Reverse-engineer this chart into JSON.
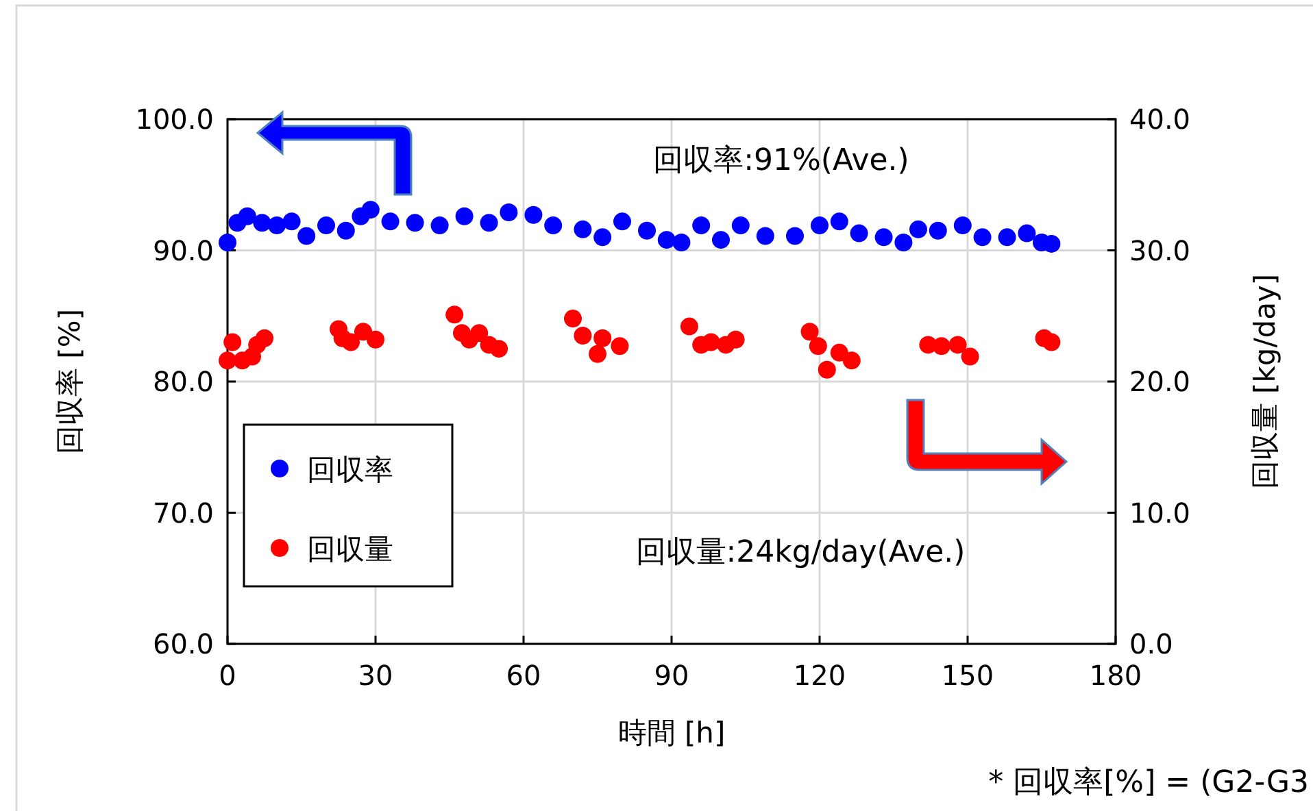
{
  "chart_data": {
    "type": "scatter",
    "xlabel": "時間 [h]",
    "ylabel": "回収率 [%]",
    "y2label": "回収量 [kg/day]",
    "xlim": [
      0,
      180
    ],
    "xticks": [
      0,
      30,
      60,
      90,
      120,
      150,
      180
    ],
    "ylim": [
      60,
      100
    ],
    "yticks": [
      {
        "value": 60,
        "label": "60.0"
      },
      {
        "value": 70,
        "label": "70.0"
      },
      {
        "value": 80,
        "label": "80.0"
      },
      {
        "value": 90,
        "label": "90.0"
      },
      {
        "value": 100,
        "label": "100.0"
      }
    ],
    "y2lim": [
      0,
      40
    ],
    "y2ticks": [
      {
        "value": 0,
        "label": "0.0"
      },
      {
        "value": 10,
        "label": "10.0"
      },
      {
        "value": 20,
        "label": "20.0"
      },
      {
        "value": 30,
        "label": "30.0"
      },
      {
        "value": 40,
        "label": "40.0"
      }
    ],
    "grid": true,
    "legend": "bottom left",
    "marker": "circle",
    "series": [
      {
        "name": "回収率",
        "color": "#0000ff",
        "x": [
          0,
          2,
          4,
          7,
          10,
          13,
          16,
          20,
          24,
          27,
          29,
          33,
          38,
          43,
          48,
          53,
          57,
          62,
          66,
          72,
          76,
          80,
          85,
          89,
          92,
          96,
          100,
          104,
          109,
          115,
          120,
          124,
          128,
          133,
          137,
          140,
          144,
          149,
          153,
          158,
          162,
          165,
          167
        ],
        "values": [
          90.6,
          92.1,
          92.6,
          92.1,
          91.9,
          92.2,
          91.1,
          91.9,
          91.5,
          92.6,
          93.1,
          92.2,
          92.1,
          91.9,
          92.6,
          92.1,
          92.9,
          92.7,
          91.9,
          91.6,
          91.0,
          92.2,
          91.5,
          90.8,
          90.6,
          91.9,
          90.8,
          91.9,
          91.1,
          91.1,
          91.9,
          92.2,
          91.3,
          91.0,
          90.6,
          91.6,
          91.5,
          91.9,
          91.0,
          91.0,
          91.3,
          90.6,
          90.5
        ]
      },
      {
        "name": "回収量",
        "color": "#ff0000",
        "axis": "y2",
        "x": [
          0,
          1,
          3,
          5,
          6,
          7.5,
          22.5,
          23.3,
          25,
          27.5,
          30,
          46,
          47.5,
          49,
          51,
          53,
          55,
          70,
          72,
          75,
          76,
          79.5,
          93.6,
          96,
          98,
          101,
          103,
          118,
          119.7,
          121.5,
          124,
          126.5,
          142,
          144.7,
          148,
          150.5,
          165.5,
          167
        ],
        "values": [
          21.6,
          23.0,
          21.6,
          21.9,
          22.8,
          23.3,
          24.0,
          23.3,
          23.0,
          23.8,
          23.2,
          25.1,
          23.7,
          23.2,
          23.7,
          22.8,
          22.5,
          24.8,
          23.5,
          22.1,
          23.3,
          22.7,
          24.2,
          22.8,
          23.0,
          22.8,
          23.2,
          23.8,
          22.7,
          20.9,
          22.2,
          21.6,
          22.8,
          22.7,
          22.8,
          21.9,
          23.3,
          23.0
        ]
      }
    ],
    "annotations": [
      "回収率:91%(Ave.)",
      "回収量:24kg/day(Ave.)",
      "* 回収率[%] = (G2-G3"
    ]
  }
}
